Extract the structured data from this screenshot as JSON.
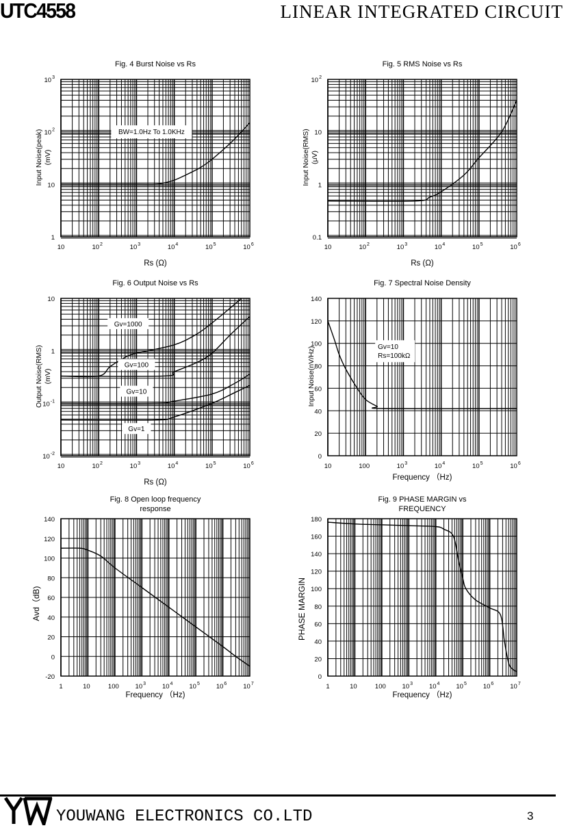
{
  "header": {
    "part_number": "UTC4558",
    "category": "LINEAR INTEGRATED CIRCUIT"
  },
  "footer": {
    "logo": "YW",
    "company": "YOUWANG ELECTRONICS CO.LTD",
    "page_number": "3"
  },
  "chart_data": [
    {
      "type": "line",
      "title": [
        "Fig.  4 Burst Noise vs Rs"
      ],
      "xlabel": "Rs  (Ω)",
      "ylabel": [
        "Input Noise(peak)",
        "(mV)"
      ],
      "xscale": "log",
      "yscale": "log",
      "xlim": [
        10,
        1000000
      ],
      "ylim": [
        1,
        1000
      ],
      "grid": true,
      "x_ticks": [
        {
          "value": 10,
          "label": "10"
        },
        {
          "value": 100,
          "label": "10^2"
        },
        {
          "value": 1000,
          "label": "10^3"
        },
        {
          "value": 10000,
          "label": "10^4"
        },
        {
          "value": 100000,
          "label": "10^5"
        },
        {
          "value": 1000000,
          "label": "10^6"
        }
      ],
      "y_ticks": [
        {
          "value": 1,
          "label": "1"
        },
        {
          "value": 10,
          "label": "10"
        },
        {
          "value": 100,
          "label": "10^2"
        },
        {
          "value": 1000,
          "label": "10^3"
        }
      ],
      "annotations": [
        [
          "BW=1.0Hz To 1.0KHz"
        ]
      ],
      "series": [
        {
          "points": [
            [
              10,
              10
            ],
            [
              1000,
              10
            ],
            [
              3000,
              10
            ],
            [
              5000,
              10.5
            ],
            [
              10000,
              12
            ],
            [
              20000,
              15
            ],
            [
              50000,
              21
            ],
            [
              100000,
              30
            ],
            [
              300000,
              60
            ],
            [
              600000,
              100
            ],
            [
              1000000,
              150
            ]
          ]
        }
      ]
    },
    {
      "type": "line",
      "title": [
        "Fig.  5  RMS Noise vs Rs"
      ],
      "xlabel": "Rs  (Ω)",
      "ylabel": [
        "Input Noise(RMS)",
        "(μV)"
      ],
      "xscale": "log",
      "yscale": "log",
      "xlim": [
        10,
        1000000
      ],
      "ylim": [
        0.1,
        100
      ],
      "grid": true,
      "x_ticks": [
        {
          "value": 10,
          "label": "10"
        },
        {
          "value": 100,
          "label": "10^2"
        },
        {
          "value": 1000,
          "label": "10^3"
        },
        {
          "value": 10000,
          "label": "10^4"
        },
        {
          "value": 100000,
          "label": "10^5"
        },
        {
          "value": 1000000,
          "label": "10^6"
        }
      ],
      "y_ticks": [
        {
          "value": 0.1,
          "label": "0.1"
        },
        {
          "value": 1,
          "label": "1"
        },
        {
          "value": 10,
          "label": "10"
        },
        {
          "value": 100,
          "label": "10^2"
        }
      ],
      "annotations": [],
      "series": [
        {
          "points": [
            [
              10,
              0.48
            ],
            [
              2000,
              0.48
            ],
            [
              5000,
              0.57
            ],
            [
              10000,
              0.72
            ],
            [
              40000,
              1.5
            ],
            [
              100000,
              3.2
            ],
            [
              400000,
              10
            ],
            [
              1000000,
              40
            ]
          ]
        }
      ]
    },
    {
      "type": "line",
      "title": [
        "Fig.  6 Output Noise vs Rs"
      ],
      "xlabel": "Rs  (Ω)",
      "ylabel": [
        "Output Noise(RMS)",
        "(mV)"
      ],
      "xscale": "log",
      "yscale": "log",
      "xlim": [
        10,
        1000000
      ],
      "ylim": [
        0.01,
        10
      ],
      "grid": true,
      "x_ticks": [
        {
          "value": 10,
          "label": "10"
        },
        {
          "value": 100,
          "label": "10^2"
        },
        {
          "value": 1000,
          "label": "10^3"
        },
        {
          "value": 10000,
          "label": "10^4"
        },
        {
          "value": 100000,
          "label": "10^5"
        },
        {
          "value": 1000000,
          "label": "10^6"
        }
      ],
      "y_ticks": [
        {
          "value": 0.01,
          "label": "10^-2"
        },
        {
          "value": 0.1,
          "label": "10^-1"
        },
        {
          "value": 1,
          "label": "1"
        },
        {
          "value": 10,
          "label": "10"
        }
      ],
      "annotations": [],
      "series": [
        {
          "name": "Gv=1000",
          "points": [
            [
              10,
              0.33
            ],
            [
              100,
              0.33
            ],
            [
              200,
              0.5
            ],
            [
              500,
              0.75
            ],
            [
              1000,
              0.9
            ],
            [
              10000,
              1.3
            ],
            [
              40000,
              2.1
            ],
            [
              100000,
              3.4
            ],
            [
              300000,
              6.5
            ],
            [
              600000,
              10
            ]
          ]
        },
        {
          "name": "Gv=100",
          "points": [
            [
              10,
              0.33
            ],
            [
              5000,
              0.33
            ],
            [
              10000,
              0.4
            ],
            [
              40000,
              0.6
            ],
            [
              100000,
              0.9
            ],
            [
              300000,
              2
            ],
            [
              1000000,
              4.5
            ]
          ]
        },
        {
          "name": "Gv=10",
          "points": [
            [
              10,
              0.1
            ],
            [
              3000,
              0.1
            ],
            [
              10000,
              0.11
            ],
            [
              100000,
              0.15
            ],
            [
              400000,
              0.24
            ],
            [
              1000000,
              0.36
            ]
          ]
        },
        {
          "name": "Gv=1",
          "points": [
            [
              10,
              0.048
            ],
            [
              3000,
              0.048
            ],
            [
              10000,
              0.055
            ],
            [
              100000,
              0.1
            ],
            [
              400000,
              0.16
            ],
            [
              1000000,
              0.22
            ]
          ]
        }
      ]
    },
    {
      "type": "line",
      "title": [
        "Fig.  7  Spectral Noise Density"
      ],
      "xlabel": "Frequency （Hz)",
      "ylabel": [
        "Input Noise(nV/Hz)"
      ],
      "xscale": "log",
      "yscale": "linear",
      "xlim": [
        10,
        1000000
      ],
      "ylim": [
        0,
        140
      ],
      "grid": true,
      "x_ticks": [
        {
          "value": 10,
          "label": "10"
        },
        {
          "value": 100,
          "label": "100"
        },
        {
          "value": 1000,
          "label": "10^3"
        },
        {
          "value": 10000,
          "label": "10^4"
        },
        {
          "value": 100000,
          "label": "10^5"
        },
        {
          "value": 1000000,
          "label": "10^6"
        }
      ],
      "y_ticks": [
        {
          "value": 0,
          "label": "0"
        },
        {
          "value": 20,
          "label": "20"
        },
        {
          "value": 40,
          "label": "40"
        },
        {
          "value": 60,
          "label": "60"
        },
        {
          "value": 80,
          "label": "80"
        },
        {
          "value": 100,
          "label": "100"
        },
        {
          "value": 120,
          "label": "120"
        },
        {
          "value": 140,
          "label": "140"
        }
      ],
      "annotations": [
        [
          "Gv=10",
          "Rs=100kΩ"
        ]
      ],
      "series": [
        {
          "points": [
            [
              10,
              120
            ],
            [
              15,
              103
            ],
            [
              20,
              90
            ],
            [
              30,
              77
            ],
            [
              60,
              60
            ],
            [
              100,
              50
            ],
            [
              200,
              44
            ],
            [
              300,
              42
            ],
            [
              1000000,
              42
            ]
          ]
        }
      ]
    },
    {
      "type": "line",
      "title": [
        "Fig.  8  Open loop frequency",
        "response"
      ],
      "xlabel": "Frequency   （Hz)",
      "ylabel": [
        "Avd（dB)"
      ],
      "xscale": "log",
      "yscale": "linear",
      "xlim": [
        1,
        10000000
      ],
      "ylim": [
        -20,
        140
      ],
      "grid": true,
      "x_ticks": [
        {
          "value": 1,
          "label": "1"
        },
        {
          "value": 10,
          "label": "10"
        },
        {
          "value": 100,
          "label": "100"
        },
        {
          "value": 1000,
          "label": "10^3"
        },
        {
          "value": 10000,
          "label": "10^4"
        },
        {
          "value": 100000,
          "label": "10^5"
        },
        {
          "value": 1000000,
          "label": "10^6"
        },
        {
          "value": 10000000,
          "label": "10^7"
        }
      ],
      "y_ticks": [
        {
          "value": -20,
          "label": "-20"
        },
        {
          "value": 0,
          "label": "0"
        },
        {
          "value": 20,
          "label": "20"
        },
        {
          "value": 40,
          "label": "40"
        },
        {
          "value": 60,
          "label": "60"
        },
        {
          "value": 80,
          "label": "80"
        },
        {
          "value": 100,
          "label": "100"
        },
        {
          "value": 120,
          "label": "120"
        },
        {
          "value": 140,
          "label": "140"
        }
      ],
      "annotations": [],
      "series": [
        {
          "points": [
            [
              1,
              110
            ],
            [
              5,
              110
            ],
            [
              10,
              108
            ],
            [
              30,
              102
            ],
            [
              100,
              90
            ],
            [
              1000,
              70
            ],
            [
              10000,
              50
            ],
            [
              100000,
              30
            ],
            [
              1000000,
              10
            ],
            [
              3000000,
              0
            ],
            [
              10000000,
              -10
            ]
          ]
        }
      ]
    },
    {
      "type": "line",
      "title": [
        "Fig.  9  PHASE MARGIN vs",
        "FREQUENCY"
      ],
      "xlabel": "Frequency   （Hz)",
      "ylabel": [
        "PHASE MARGIN"
      ],
      "xscale": "log",
      "yscale": "linear",
      "xlim": [
        1,
        10000000
      ],
      "ylim": [
        0,
        180
      ],
      "grid": true,
      "x_ticks": [
        {
          "value": 1,
          "label": "1"
        },
        {
          "value": 10,
          "label": "10"
        },
        {
          "value": 100,
          "label": "100"
        },
        {
          "value": 1000,
          "label": "10^3"
        },
        {
          "value": 10000,
          "label": "10^4"
        },
        {
          "value": 100000,
          "label": "10^5"
        },
        {
          "value": 1000000,
          "label": "10^6"
        },
        {
          "value": 10000000,
          "label": "10^7"
        }
      ],
      "y_ticks": [
        {
          "value": 0,
          "label": "0"
        },
        {
          "value": 20,
          "label": "20"
        },
        {
          "value": 40,
          "label": "40"
        },
        {
          "value": 60,
          "label": "60"
        },
        {
          "value": 80,
          "label": "80"
        },
        {
          "value": 100,
          "label": "100"
        },
        {
          "value": 120,
          "label": "120"
        },
        {
          "value": 140,
          "label": "140"
        },
        {
          "value": 160,
          "label": "160"
        },
        {
          "value": 180,
          "label": "180"
        }
      ],
      "annotations": [],
      "series": [
        {
          "points": [
            [
              1,
              176
            ],
            [
              10,
              174
            ],
            [
              100,
              173
            ],
            [
              1000,
              172
            ],
            [
              10000,
              171
            ],
            [
              20000,
              168
            ],
            [
              45000,
              160
            ],
            [
              70000,
              132
            ],
            [
              100000,
              112
            ],
            [
              130000,
              100
            ],
            [
              300000,
              87
            ],
            [
              1000000,
              78
            ],
            [
              2500000,
              70
            ],
            [
              3500000,
              40
            ],
            [
              5000000,
              15
            ],
            [
              7000000,
              8
            ],
            [
              10000000,
              5
            ]
          ]
        }
      ]
    }
  ]
}
